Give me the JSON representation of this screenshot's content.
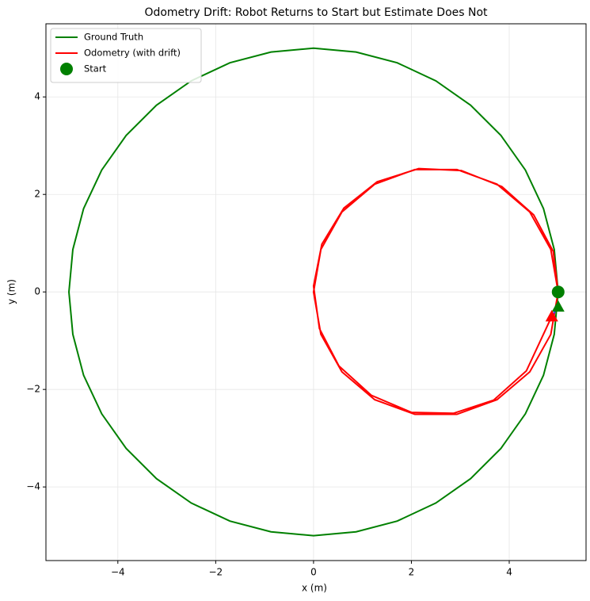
{
  "chart_data": {
    "type": "line",
    "title": "Odometry Drift: Robot Returns to Start but Estimate Does Not",
    "x_label": "x (m)",
    "y_label": "y (m)",
    "xlim": [
      -5.47,
      5.57
    ],
    "ylim": [
      -5.51,
      5.5
    ],
    "xticks": [
      {
        "value": -4,
        "label": "−4"
      },
      {
        "value": -2,
        "label": "−2"
      },
      0,
      2,
      4
    ],
    "yticks": [
      {
        "value": -4,
        "label": "−4"
      },
      {
        "value": -2,
        "label": "−2"
      },
      0,
      2,
      4
    ],
    "grid": true,
    "legend": "upper left",
    "series": [
      {
        "name": "Ground Truth",
        "color": "#008000",
        "marker": "line",
        "x": [
          5,
          4.92,
          4.7,
          4.33,
          3.83,
          3.21,
          2.5,
          1.71,
          0.87,
          0,
          -0.87,
          -1.71,
          -2.5,
          -3.21,
          -3.83,
          -4.33,
          -4.7,
          -4.92,
          -5,
          -4.92,
          -4.7,
          -4.33,
          -3.83,
          -3.21,
          -2.5,
          -1.71,
          -0.87,
          0,
          0.87,
          1.71,
          2.5,
          3.21,
          3.83,
          4.33,
          4.7,
          4.92,
          5
        ],
        "y": [
          0,
          0.87,
          1.71,
          2.5,
          3.21,
          3.83,
          4.33,
          4.7,
          4.92,
          5,
          4.92,
          4.7,
          4.33,
          3.83,
          3.21,
          2.5,
          1.71,
          0.87,
          0,
          -0.87,
          -1.71,
          -2.5,
          -3.21,
          -3.83,
          -4.33,
          -4.7,
          -4.92,
          -5,
          -4.92,
          -4.7,
          -4.33,
          -3.83,
          -3.21,
          -2.5,
          -1.71,
          -0.87,
          0
        ]
      },
      {
        "name": "Odometry (with drift)",
        "color": "#ff0000",
        "marker": "line",
        "x": [
          5,
          4.85,
          4.42,
          3.75,
          2.93,
          2.07,
          1.25,
          0.58,
          0.15,
          0,
          0.15,
          0.58,
          1.25,
          2.07,
          2.93,
          3.75,
          4.42,
          4.85,
          5,
          4.9,
          4.5,
          3.85,
          3.02,
          2.15,
          1.3,
          0.62,
          0.17,
          0,
          0.12,
          0.52,
          1.18,
          2,
          2.86,
          3.68,
          4.35,
          4.87
        ],
        "y": [
          0,
          0.87,
          1.64,
          2.21,
          2.51,
          2.51,
          2.21,
          1.64,
          0.87,
          0,
          -0.87,
          -1.64,
          -2.21,
          -2.51,
          -2.51,
          -2.21,
          -1.64,
          -0.87,
          0,
          0.83,
          1.58,
          2.16,
          2.49,
          2.53,
          2.26,
          1.72,
          0.98,
          0.12,
          -0.75,
          -1.52,
          -2.12,
          -2.47,
          -2.49,
          -2.22,
          -1.62,
          -0.5
        ]
      },
      {
        "color": "#3a3aff",
        "marker": "line",
        "x": [
          4.87,
          5
        ],
        "y": [
          -0.5,
          -0.3
        ]
      },
      {
        "name": "Start",
        "color": "#008000",
        "marker": "circle",
        "x": [
          5
        ],
        "y": [
          0
        ]
      },
      {
        "color": "#008000",
        "marker": "triangle",
        "x": [
          5
        ],
        "y": [
          -0.3
        ]
      },
      {
        "color": "#ff0000",
        "marker": "triangle",
        "x": [
          4.87
        ],
        "y": [
          -0.5
        ]
      }
    ]
  }
}
